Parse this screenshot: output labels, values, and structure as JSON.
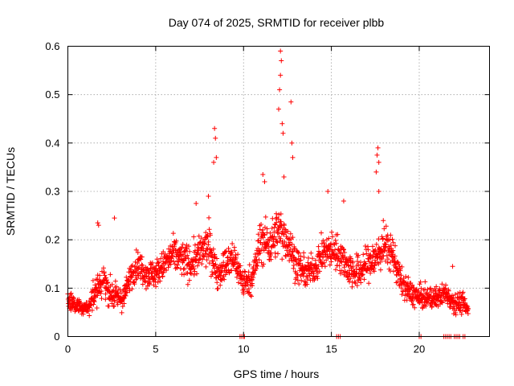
{
  "chart_data": {
    "type": "scatter",
    "title": "Day 074 of 2025, SRMTID for receiver plbb",
    "xlabel": "GPS time / hours",
    "ylabel": "SRMTID / TECUs",
    "xlim": [
      0,
      24
    ],
    "ylim": [
      0,
      0.6
    ],
    "x_ticks": [
      0,
      5,
      10,
      15,
      20
    ],
    "y_ticks": [
      0,
      0.1,
      0.2,
      0.3,
      0.4,
      0.5,
      0.6
    ],
    "x_tick_labels": [
      "0",
      "5",
      "10",
      "15",
      "20"
    ],
    "y_tick_labels": [
      "0",
      "0.1",
      "0.2",
      "0.3",
      "0.4",
      "0.5",
      "0.6"
    ],
    "grid": true,
    "marker": "+",
    "color": "#ff0000",
    "series": [
      {
        "name": "SRMTID",
        "envelope_x": [
          0,
          0.3,
          0.6,
          0.9,
          1.2,
          1.6,
          2.0,
          2.4,
          2.8,
          3.2,
          3.6,
          4.0,
          4.5,
          5.0,
          5.5,
          6.0,
          6.5,
          7.0,
          7.5,
          8.0,
          8.5,
          9.0,
          9.5,
          10.0,
          10.5,
          11.0,
          11.5,
          12.0,
          12.5,
          13.0,
          13.5,
          14.0,
          14.5,
          15.0,
          15.5,
          16.0,
          16.5,
          17.0,
          17.5,
          18.0,
          18.5,
          19.0,
          19.5,
          20.0,
          20.5,
          21.0,
          21.5,
          22.0,
          22.5,
          22.8
        ],
        "envelope_center": [
          0.075,
          0.07,
          0.065,
          0.055,
          0.06,
          0.09,
          0.12,
          0.09,
          0.08,
          0.08,
          0.13,
          0.15,
          0.13,
          0.13,
          0.15,
          0.17,
          0.16,
          0.15,
          0.17,
          0.19,
          0.13,
          0.15,
          0.16,
          0.11,
          0.12,
          0.2,
          0.19,
          0.22,
          0.2,
          0.15,
          0.13,
          0.14,
          0.17,
          0.18,
          0.17,
          0.14,
          0.13,
          0.15,
          0.16,
          0.19,
          0.17,
          0.11,
          0.09,
          0.08,
          0.08,
          0.08,
          0.09,
          0.07,
          0.07,
          0.05
        ],
        "envelope_spread": [
          0.03,
          0.025,
          0.02,
          0.02,
          0.025,
          0.05,
          0.05,
          0.04,
          0.035,
          0.035,
          0.04,
          0.04,
          0.04,
          0.04,
          0.04,
          0.05,
          0.05,
          0.05,
          0.05,
          0.06,
          0.04,
          0.05,
          0.05,
          0.04,
          0.04,
          0.07,
          0.06,
          0.07,
          0.06,
          0.05,
          0.04,
          0.04,
          0.05,
          0.05,
          0.05,
          0.05,
          0.05,
          0.05,
          0.06,
          0.06,
          0.05,
          0.04,
          0.035,
          0.035,
          0.03,
          0.03,
          0.03,
          0.03,
          0.03,
          0.02
        ],
        "spikes": [
          {
            "x": 1.7,
            "y": 0.235
          },
          {
            "x": 1.75,
            "y": 0.23
          },
          {
            "x": 2.65,
            "y": 0.245
          },
          {
            "x": 7.3,
            "y": 0.275
          },
          {
            "x": 8.0,
            "y": 0.29
          },
          {
            "x": 8.35,
            "y": 0.43
          },
          {
            "x": 8.4,
            "y": 0.41
          },
          {
            "x": 8.45,
            "y": 0.37
          },
          {
            "x": 8.3,
            "y": 0.36
          },
          {
            "x": 11.1,
            "y": 0.335
          },
          {
            "x": 11.2,
            "y": 0.32
          },
          {
            "x": 12.1,
            "y": 0.59
          },
          {
            "x": 12.15,
            "y": 0.57
          },
          {
            "x": 12.1,
            "y": 0.54
          },
          {
            "x": 12.05,
            "y": 0.51
          },
          {
            "x": 12.0,
            "y": 0.47
          },
          {
            "x": 12.2,
            "y": 0.44
          },
          {
            "x": 12.25,
            "y": 0.42
          },
          {
            "x": 12.7,
            "y": 0.485
          },
          {
            "x": 12.75,
            "y": 0.4
          },
          {
            "x": 12.8,
            "y": 0.37
          },
          {
            "x": 12.3,
            "y": 0.33
          },
          {
            "x": 14.8,
            "y": 0.3
          },
          {
            "x": 15.7,
            "y": 0.28
          },
          {
            "x": 17.65,
            "y": 0.39
          },
          {
            "x": 17.6,
            "y": 0.375
          },
          {
            "x": 17.7,
            "y": 0.36
          },
          {
            "x": 17.55,
            "y": 0.34
          },
          {
            "x": 17.7,
            "y": 0.3
          },
          {
            "x": 21.9,
            "y": 0.145
          }
        ],
        "zero_points_x": [
          9.8,
          9.9,
          10.0,
          10.05,
          15.3,
          15.4,
          15.5,
          20.0,
          20.1,
          21.4,
          21.5,
          21.6,
          21.7,
          21.8,
          22.0,
          22.1,
          22.2,
          22.3,
          22.5,
          22.6
        ]
      }
    ]
  }
}
